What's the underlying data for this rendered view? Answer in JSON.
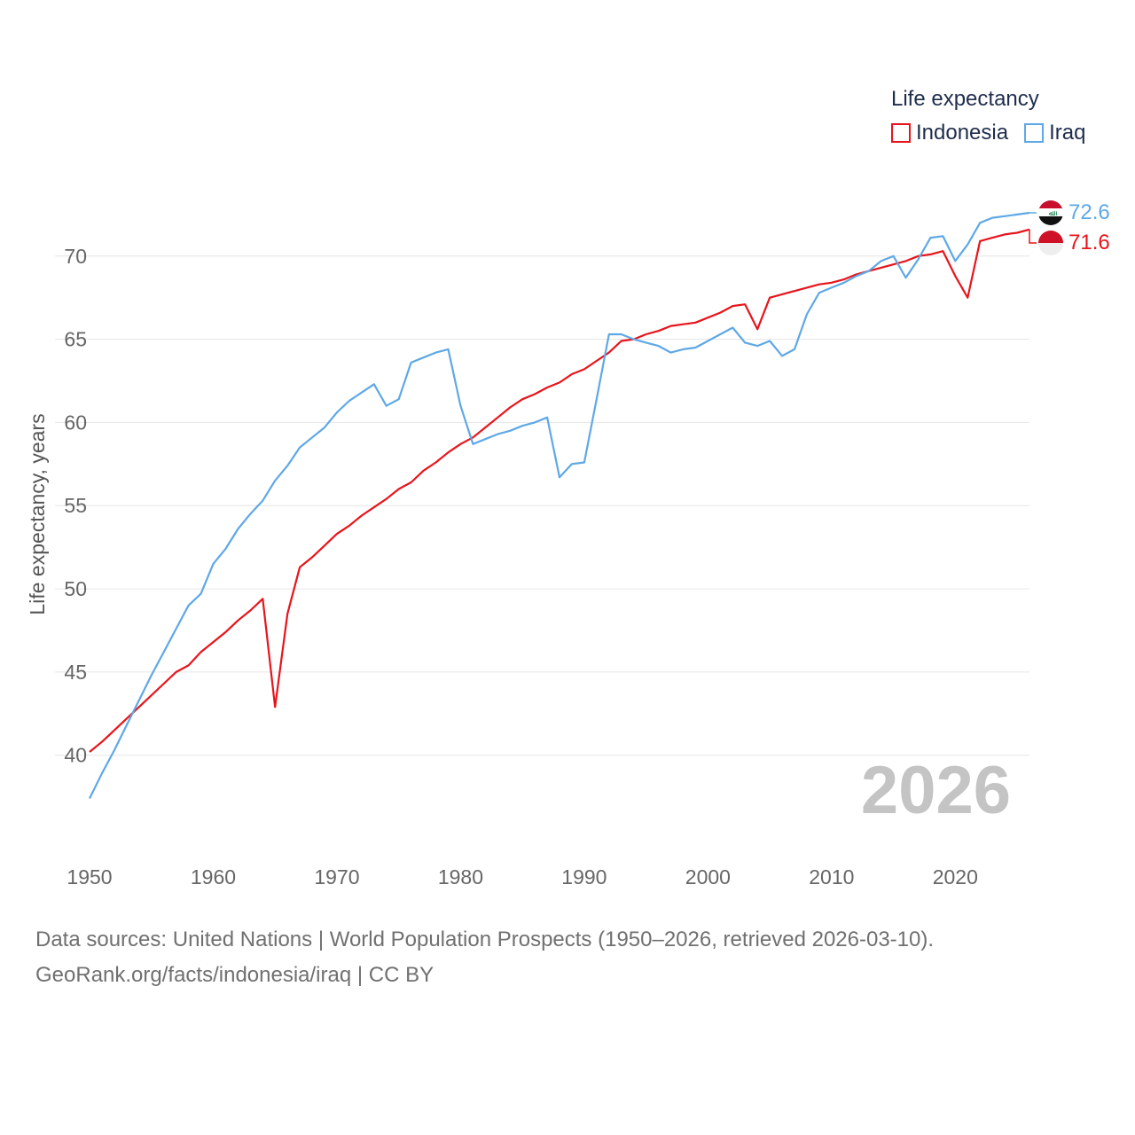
{
  "legend": {
    "title": "Life expectancy",
    "indonesia": "Indonesia",
    "iraq": "Iraq"
  },
  "year_label": "2026",
  "footer": {
    "line1": "Data sources: United Nations | World Population Prospects (1950–2026, retrieved 2026-03-10).",
    "line2": "GeoRank.org/facts/indonesia/iraq | CC BY"
  },
  "end_labels": {
    "indonesia": "71.6",
    "iraq": "72.6"
  },
  "colors": {
    "indonesia": "#e8141b",
    "iraq": "#5ea8e6",
    "grid": "#e6e6e6",
    "axis_text": "#666666"
  },
  "chart_data": {
    "type": "line",
    "title": "Life expectancy",
    "xlabel": "",
    "ylabel": "Life expectancy, years",
    "xlim": [
      1950,
      2026
    ],
    "ylim": [
      37,
      72.6
    ],
    "xticks": [
      1950,
      1960,
      1970,
      1980,
      1990,
      2000,
      2010,
      2020
    ],
    "yticks": [
      40,
      45,
      50,
      55,
      60,
      65,
      70
    ],
    "x": [
      1950,
      1951,
      1952,
      1953,
      1954,
      1955,
      1956,
      1957,
      1958,
      1959,
      1960,
      1961,
      1962,
      1963,
      1964,
      1965,
      1966,
      1967,
      1968,
      1969,
      1970,
      1971,
      1972,
      1973,
      1974,
      1975,
      1976,
      1977,
      1978,
      1979,
      1980,
      1981,
      1982,
      1983,
      1984,
      1985,
      1986,
      1987,
      1988,
      1989,
      1990,
      1991,
      1992,
      1993,
      1994,
      1995,
      1996,
      1997,
      1998,
      1999,
      2000,
      2001,
      2002,
      2003,
      2004,
      2005,
      2006,
      2007,
      2008,
      2009,
      2010,
      2011,
      2012,
      2013,
      2014,
      2015,
      2016,
      2017,
      2018,
      2019,
      2020,
      2021,
      2022,
      2023,
      2024,
      2025,
      2026
    ],
    "series": [
      {
        "name": "Indonesia",
        "values": [
          40.2,
          40.8,
          41.5,
          42.2,
          42.9,
          43.6,
          44.3,
          45.0,
          45.4,
          46.2,
          46.8,
          47.4,
          48.1,
          48.7,
          49.4,
          42.9,
          48.5,
          51.3,
          51.9,
          52.6,
          53.3,
          53.8,
          54.4,
          54.9,
          55.4,
          56.0,
          56.4,
          57.1,
          57.6,
          58.2,
          58.7,
          59.1,
          59.7,
          60.3,
          60.9,
          61.4,
          61.7,
          62.1,
          62.4,
          62.9,
          63.2,
          63.7,
          64.2,
          64.9,
          65.0,
          65.3,
          65.5,
          65.8,
          65.9,
          66.0,
          66.3,
          66.6,
          67.0,
          67.1,
          65.6,
          67.5,
          67.7,
          67.9,
          68.1,
          68.3,
          68.4,
          68.6,
          68.9,
          69.1,
          69.3,
          69.5,
          69.7,
          70.0,
          70.1,
          70.3,
          68.8,
          67.5,
          70.9,
          71.1,
          71.3,
          71.4,
          71.6
        ]
      },
      {
        "name": "Iraq",
        "values": [
          37.4,
          38.9,
          40.3,
          41.8,
          43.3,
          44.8,
          46.2,
          47.6,
          49.0,
          49.7,
          51.5,
          52.4,
          53.6,
          54.5,
          55.3,
          56.5,
          57.4,
          58.5,
          59.1,
          59.7,
          60.6,
          61.3,
          61.8,
          62.3,
          61.0,
          61.4,
          63.6,
          63.9,
          64.2,
          64.4,
          61.0,
          58.7,
          59.0,
          59.3,
          59.5,
          59.8,
          60.0,
          60.3,
          56.7,
          57.5,
          57.6,
          61.4,
          65.3,
          65.3,
          65.0,
          64.8,
          64.6,
          64.2,
          64.4,
          64.5,
          64.9,
          65.3,
          65.7,
          64.8,
          64.6,
          64.9,
          64.0,
          64.4,
          66.5,
          67.8,
          68.1,
          68.4,
          68.8,
          69.1,
          69.7,
          70.0,
          68.7,
          69.8,
          71.1,
          71.2,
          69.7,
          70.7,
          72.0,
          72.3,
          72.4,
          72.5,
          72.6
        ]
      }
    ]
  }
}
